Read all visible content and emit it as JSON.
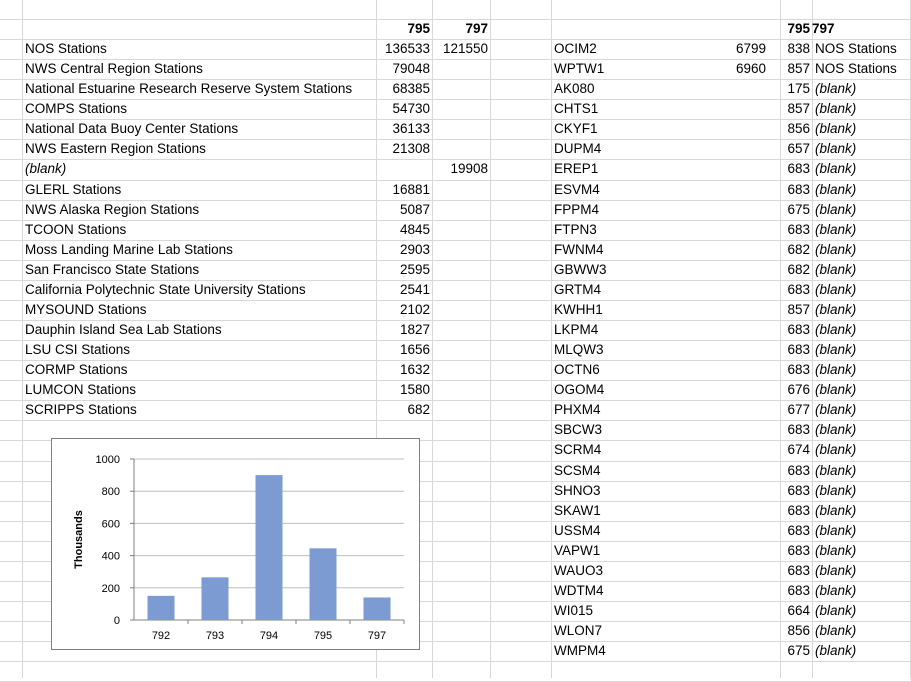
{
  "columns": {
    "left_header": [
      "795",
      "797"
    ],
    "right_header": [
      "795",
      "797"
    ]
  },
  "left_table": [
    {
      "label": "NOS Stations",
      "v795": "136533",
      "v797": "121550",
      "italic": false
    },
    {
      "label": "NWS Central Region Stations",
      "v795": "79048",
      "v797": "",
      "italic": false
    },
    {
      "label": "National Estuarine Research Reserve System Stations",
      "v795": "68385",
      "v797": "",
      "italic": false
    },
    {
      "label": "COMPS Stations",
      "v795": "54730",
      "v797": "",
      "italic": false
    },
    {
      "label": "National Data Buoy Center Stations",
      "v795": "36133",
      "v797": "",
      "italic": false
    },
    {
      "label": "NWS Eastern Region Stations",
      "v795": "21308",
      "v797": "",
      "italic": false
    },
    {
      "label": "(blank)",
      "v795": "",
      "v797": "19908",
      "italic": true
    },
    {
      "label": "GLERL Stations",
      "v795": "16881",
      "v797": "",
      "italic": false
    },
    {
      "label": "NWS Alaska Region Stations",
      "v795": "5087",
      "v797": "",
      "italic": false
    },
    {
      "label": "TCOON Stations",
      "v795": "4845",
      "v797": "",
      "italic": false
    },
    {
      "label": "Moss Landing Marine Lab Stations",
      "v795": "2903",
      "v797": "",
      "italic": false
    },
    {
      "label": "San Francisco State Stations",
      "v795": "2595",
      "v797": "",
      "italic": false
    },
    {
      "label": "California Polytechnic State University Stations",
      "v795": "2541",
      "v797": "",
      "italic": false
    },
    {
      "label": "MYSOUND Stations",
      "v795": "2102",
      "v797": "",
      "italic": false
    },
    {
      "label": "Dauphin Island Sea Lab Stations",
      "v795": "1827",
      "v797": "",
      "italic": false
    },
    {
      "label": "LSU CSI Stations",
      "v795": "1656",
      "v797": "",
      "italic": false
    },
    {
      "label": "CORMP Stations",
      "v795": "1632",
      "v797": "",
      "italic": false
    },
    {
      "label": "LUMCON Stations",
      "v795": "1580",
      "v797": "",
      "italic": false
    },
    {
      "label": "SCRIPPS Stations",
      "v795": "682",
      "v797": "",
      "italic": false
    }
  ],
  "right_table": [
    {
      "id": "OCIM2",
      "v795": "6799",
      "v797": "838",
      "group": "NOS Stations",
      "blank": false
    },
    {
      "id": "WPTW1",
      "v795": "6960",
      "v797": "857",
      "group": "NOS Stations",
      "blank": false
    },
    {
      "id": "AK080",
      "v795": "",
      "v797": "175",
      "group": "(blank)",
      "blank": true
    },
    {
      "id": "CHTS1",
      "v795": "",
      "v797": "857",
      "group": "(blank)",
      "blank": true
    },
    {
      "id": "CKYF1",
      "v795": "",
      "v797": "856",
      "group": "(blank)",
      "blank": true
    },
    {
      "id": "DUPM4",
      "v795": "",
      "v797": "657",
      "group": "(blank)",
      "blank": true
    },
    {
      "id": "EREP1",
      "v795": "",
      "v797": "683",
      "group": "(blank)",
      "blank": true
    },
    {
      "id": "ESVM4",
      "v795": "",
      "v797": "683",
      "group": "(blank)",
      "blank": true
    },
    {
      "id": "FPPM4",
      "v795": "",
      "v797": "675",
      "group": "(blank)",
      "blank": true
    },
    {
      "id": "FTPN3",
      "v795": "",
      "v797": "683",
      "group": "(blank)",
      "blank": true
    },
    {
      "id": "FWNM4",
      "v795": "",
      "v797": "682",
      "group": "(blank)",
      "blank": true
    },
    {
      "id": "GBWW3",
      "v795": "",
      "v797": "682",
      "group": "(blank)",
      "blank": true
    },
    {
      "id": "GRTM4",
      "v795": "",
      "v797": "683",
      "group": "(blank)",
      "blank": true
    },
    {
      "id": "KWHH1",
      "v795": "",
      "v797": "857",
      "group": "(blank)",
      "blank": true
    },
    {
      "id": "LKPM4",
      "v795": "",
      "v797": "683",
      "group": "(blank)",
      "blank": true
    },
    {
      "id": "MLQW3",
      "v795": "",
      "v797": "683",
      "group": "(blank)",
      "blank": true
    },
    {
      "id": "OCTN6",
      "v795": "",
      "v797": "683",
      "group": "(blank)",
      "blank": true
    },
    {
      "id": "OGOM4",
      "v795": "",
      "v797": "676",
      "group": "(blank)",
      "blank": true
    },
    {
      "id": "PHXM4",
      "v795": "",
      "v797": "677",
      "group": "(blank)",
      "blank": true
    },
    {
      "id": "SBCW3",
      "v795": "",
      "v797": "683",
      "group": "(blank)",
      "blank": true
    },
    {
      "id": "SCRM4",
      "v795": "",
      "v797": "674",
      "group": "(blank)",
      "blank": true
    },
    {
      "id": "SCSM4",
      "v795": "",
      "v797": "683",
      "group": "(blank)",
      "blank": true
    },
    {
      "id": "SHNO3",
      "v795": "",
      "v797": "683",
      "group": "(blank)",
      "blank": true
    },
    {
      "id": "SKAW1",
      "v795": "",
      "v797": "683",
      "group": "(blank)",
      "blank": true
    },
    {
      "id": "USSM4",
      "v795": "",
      "v797": "683",
      "group": "(blank)",
      "blank": true
    },
    {
      "id": "VAPW1",
      "v795": "",
      "v797": "683",
      "group": "(blank)",
      "blank": true
    },
    {
      "id": "WAUO3",
      "v795": "",
      "v797": "683",
      "group": "(blank)",
      "blank": true
    },
    {
      "id": "WDTM4",
      "v795": "",
      "v797": "683",
      "group": "(blank)",
      "blank": true
    },
    {
      "id": "WI015",
      "v795": "",
      "v797": "664",
      "group": "(blank)",
      "blank": true
    },
    {
      "id": "WLON7",
      "v795": "",
      "v797": "856",
      "group": "(blank)",
      "blank": true
    },
    {
      "id": "WMPM4",
      "v795": "",
      "v797": "675",
      "group": "(blank)",
      "blank": true
    }
  ],
  "chart_data": {
    "type": "bar",
    "categories": [
      "792",
      "793",
      "794",
      "795",
      "797"
    ],
    "values": [
      150,
      265,
      900,
      445,
      140
    ],
    "ylabel": "Thousands",
    "ylim": [
      0,
      1000
    ],
    "yticks": [
      "0",
      "200",
      "400",
      "600",
      "800",
      "1000"
    ],
    "grid": true,
    "legend": "none",
    "bar_color": "#7b9bd2"
  }
}
